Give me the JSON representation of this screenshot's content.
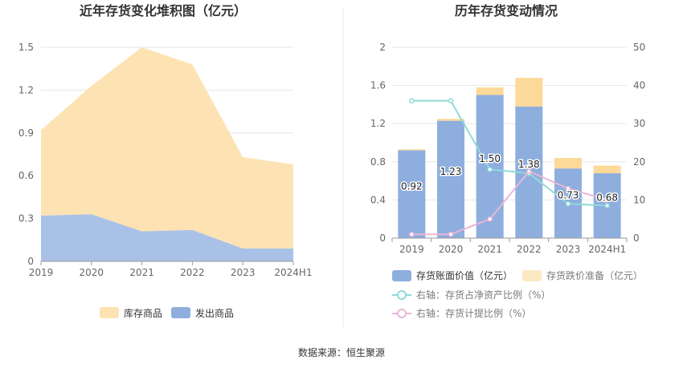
{
  "colors": {
    "inventory_goods": "#fde3b3",
    "shipped_goods": "#a9c1e7",
    "book_value": "#8eaede",
    "impairment": "#fdd999",
    "ratio_net_assets": "#8fdad8",
    "provision_ratio": "#e8b6d9",
    "grid": "#e6e6e6",
    "divider": "#e8e8e8"
  },
  "chart_data": [
    {
      "type": "area",
      "title": "近年存货变化堆积图（亿元）",
      "categories": [
        "2019",
        "2020",
        "2021",
        "2022",
        "2023",
        "2024H1"
      ],
      "series": [
        {
          "name": "库存商品",
          "values": [
            0.6,
            0.9,
            1.29,
            1.16,
            0.64,
            0.59
          ]
        },
        {
          "name": "发出商品",
          "values": [
            0.32,
            0.33,
            0.21,
            0.22,
            0.09,
            0.09
          ]
        }
      ],
      "stacked": true,
      "ylim": [
        0,
        1.5
      ],
      "yticks": [
        "0",
        "0.3",
        "0.6",
        "0.9",
        "1.2",
        "1.5"
      ],
      "yticks_values": [
        0,
        0.3,
        0.6,
        0.9,
        1.2,
        1.5
      ],
      "grid": true,
      "legend_position": "bottom"
    },
    {
      "type": "bar",
      "title": "历年存货变动情况",
      "categories": [
        "2019",
        "2020",
        "2021",
        "2022",
        "2023",
        "2024H1"
      ],
      "series": [
        {
          "name": "存货账面价值（亿元）",
          "values": [
            0.92,
            1.23,
            1.5,
            1.38,
            0.73,
            0.68
          ],
          "labels": [
            "0.92",
            "1.23",
            "1.50",
            "1.38",
            "0.73",
            "0.68"
          ]
        },
        {
          "name": "存货跌价准备（亿元）",
          "values": [
            0.01,
            0.02,
            0.08,
            0.3,
            0.11,
            0.08
          ]
        }
      ],
      "line_series": [
        {
          "name": "右轴：存货占净资产比例（%）",
          "values": [
            36,
            36,
            18,
            17,
            9,
            8.5
          ]
        },
        {
          "name": "右轴：存货计提比例（%）",
          "values": [
            1,
            1,
            5,
            17.5,
            13,
            10
          ]
        }
      ],
      "stacked": true,
      "ylim": [
        0,
        2
      ],
      "yticks": [
        "0",
        "0.4",
        "0.8",
        "1.2",
        "1.6",
        "2"
      ],
      "yticks_values": [
        0,
        0.4,
        0.8,
        1.2,
        1.6,
        2
      ],
      "y2lim": [
        0,
        50
      ],
      "y2ticks": [
        "0",
        "10",
        "20",
        "30",
        "40",
        "50"
      ],
      "y2ticks_values": [
        0,
        10,
        20,
        30,
        40,
        50
      ],
      "grid": true,
      "legend_position": "bottom"
    }
  ],
  "source": "数据来源：恒生聚源"
}
